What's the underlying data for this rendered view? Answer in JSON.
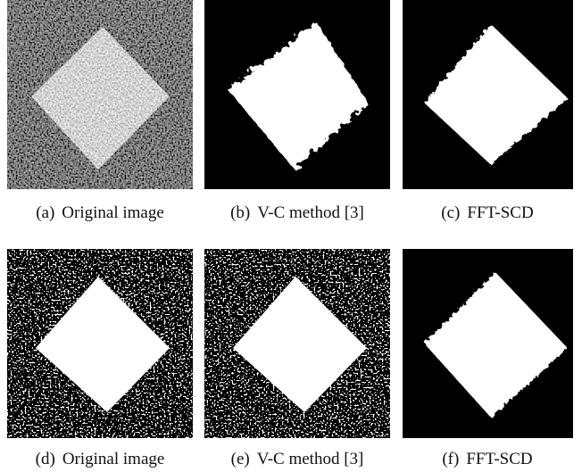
{
  "panels": [
    {
      "label": "(a)",
      "caption": "Original image"
    },
    {
      "label": "(b)",
      "caption": "V-C method [3]"
    },
    {
      "label": "(c)",
      "caption": "FFT-SCD"
    },
    {
      "label": "(d)",
      "caption": "Original image"
    },
    {
      "label": "(e)",
      "caption": "V-C method [3]"
    },
    {
      "label": "(f)",
      "caption": "FFT-SCD"
    }
  ]
}
